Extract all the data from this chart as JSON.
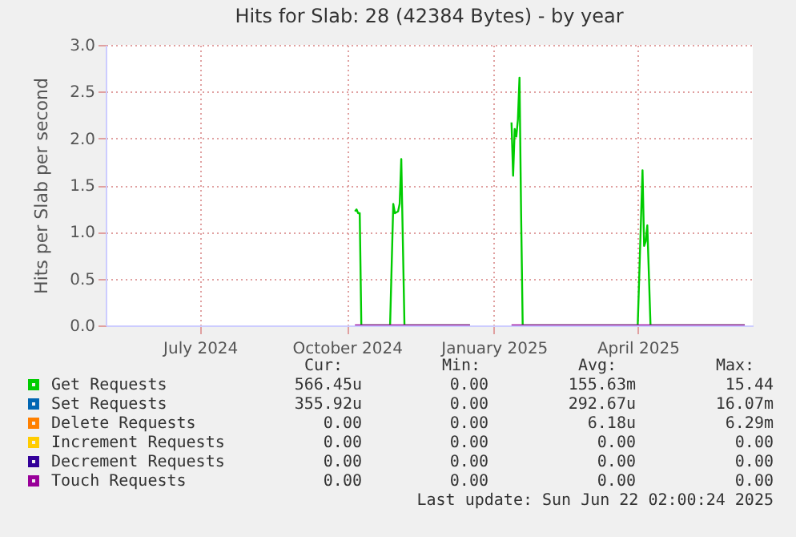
{
  "chart_data": {
    "type": "line",
    "title": "Hits for Slab: 28 (42384 Bytes) - by year",
    "ylabel": "Hits per Slab per second",
    "x": [
      "2024-10-06",
      "2024-10-07",
      "2024-10-08",
      "2024-10-09",
      "2024-10-10",
      "2024-10-28",
      "2024-10-30",
      "2024-10-31",
      "2024-11-02",
      "2024-11-03",
      "2024-11-04",
      "2024-11-06",
      "2024-12-17",
      "2024-12-18",
      "2025-01-12",
      "2025-01-13",
      "2025-01-14",
      "2025-01-15",
      "2025-01-16",
      "2025-01-17",
      "2025-01-18",
      "2025-01-19",
      "2025-04-01",
      "2025-04-04",
      "2025-04-05",
      "2025-04-06",
      "2025-04-07",
      "2025-04-09",
      "2025-06-07"
    ],
    "series": [
      {
        "name": "Get Requests",
        "color": "#00cc00",
        "values": [
          1.22,
          1.24,
          1.2,
          1.2,
          0,
          0,
          1.3,
          1.2,
          1.22,
          1.3,
          1.78,
          0,
          0,
          null,
          2.17,
          1.6,
          2.1,
          2.02,
          2.2,
          2.65,
          1.2,
          0,
          0,
          1.66,
          0.85,
          0.9,
          1.07,
          0,
          0
        ]
      },
      {
        "name": "Set Requests",
        "color": "#0066b3",
        "values": [
          null,
          null,
          null,
          null,
          null,
          null,
          null,
          null,
          null,
          null,
          null,
          null,
          null,
          null,
          null,
          null,
          null,
          null,
          null,
          null,
          null,
          null,
          null,
          null,
          null,
          null,
          null,
          null,
          null
        ]
      },
      {
        "name": "Delete Requests",
        "color": "#ff8000",
        "values": [
          null,
          null,
          null,
          null,
          null,
          null,
          null,
          null,
          null,
          null,
          null,
          null,
          null,
          null,
          null,
          null,
          null,
          null,
          null,
          null,
          null,
          null,
          null,
          null,
          null,
          null,
          null,
          null,
          null
        ]
      },
      {
        "name": "Increment Requests",
        "color": "#ffcc00",
        "values": [
          null,
          null,
          null,
          null,
          null,
          null,
          null,
          null,
          null,
          null,
          null,
          null,
          null,
          null,
          null,
          null,
          null,
          null,
          null,
          null,
          null,
          null,
          null,
          null,
          null,
          null,
          null,
          null,
          null
        ]
      },
      {
        "name": "Decrement Requests",
        "color": "#330099",
        "values": [
          null,
          null,
          null,
          null,
          null,
          null,
          null,
          null,
          null,
          null,
          null,
          null,
          null,
          null,
          null,
          null,
          null,
          null,
          null,
          null,
          null,
          null,
          null,
          null,
          null,
          null,
          null,
          null,
          null
        ]
      },
      {
        "name": "Touch Requests",
        "color": "#990099",
        "values": [
          0,
          0,
          0,
          0,
          0,
          0,
          0,
          0,
          0,
          0,
          0,
          0,
          0,
          null,
          0,
          0,
          0,
          0,
          0,
          0,
          0,
          0,
          0,
          0,
          0,
          0,
          0,
          0,
          0
        ]
      }
    ],
    "xlim": [
      "2024-05-03",
      "2025-06-12"
    ],
    "xticks": [
      {
        "value": "2024-07-01",
        "label": "July 2024"
      },
      {
        "value": "2024-10-01",
        "label": "October 2024"
      },
      {
        "value": "2025-01-01",
        "label": "January 2025"
      },
      {
        "value": "2025-04-01",
        "label": "April 2025"
      }
    ],
    "ylim": [
      0,
      3
    ],
    "yticks": [
      {
        "value": 0,
        "label": "0.0"
      },
      {
        "value": 0.5,
        "label": "0.5"
      },
      {
        "value": 1,
        "label": "1.0"
      },
      {
        "value": 1.5,
        "label": "1.5"
      },
      {
        "value": 2,
        "label": "2.0"
      },
      {
        "value": 2.5,
        "label": "2.5"
      },
      {
        "value": 3,
        "label": "3.0"
      }
    ],
    "grid": true,
    "legend": "bottom left",
    "annotations": [
      "Cur:",
      "Min:",
      "Avg:",
      "Max:",
      "566.45u",
      "0.00",
      "155.63m",
      "15.44",
      "355.92u",
      "0.00",
      "292.67u",
      "16.07m",
      "0.00",
      "0.00",
      "6.18u",
      "6.29m",
      "0.00",
      "0.00",
      "0.00",
      "0.00",
      "0.00",
      "0.00",
      "0.00",
      "0.00",
      "0.00",
      "0.00",
      "0.00",
      "0.00",
      "Last update: Sun Jun 22 02:00:24 2025"
    ]
  }
}
